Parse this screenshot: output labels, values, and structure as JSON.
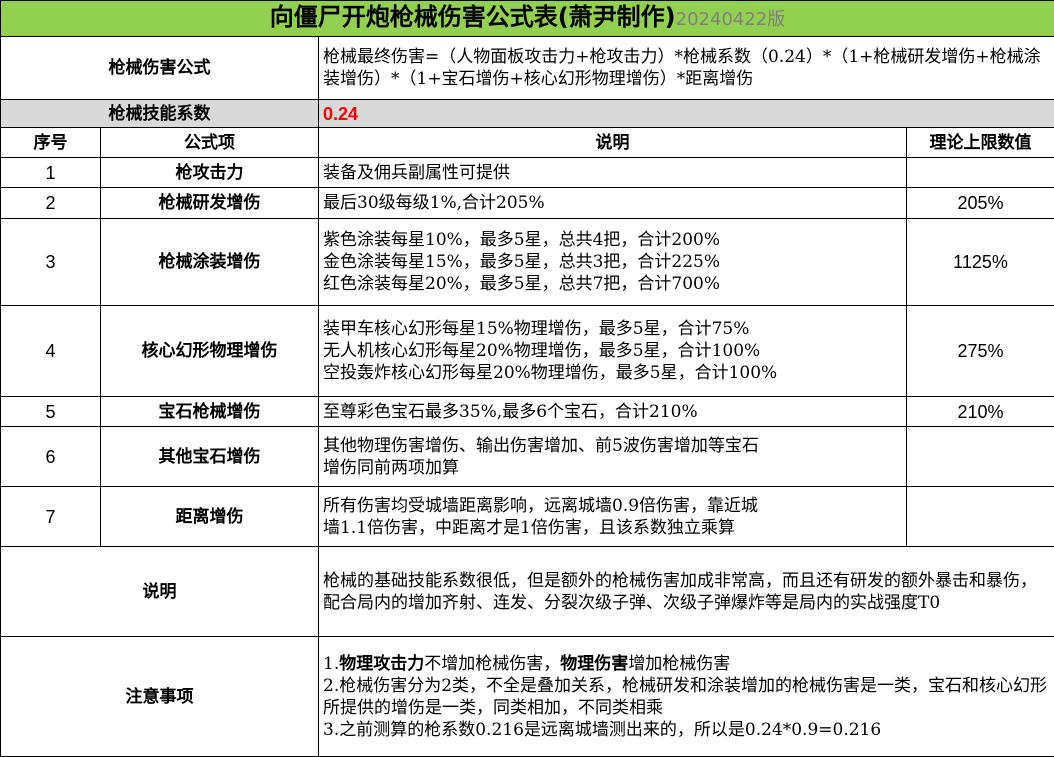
{
  "title": {
    "main": "向僵尸开炮枪械伤害公式表(萧尹制作)",
    "version": "20240422版"
  },
  "formula": {
    "label": "枪械伤害公式",
    "text": "枪械最终伤害=（人物面板攻击力+枪攻击力）*枪械系数（0.24）*（1+枪械研发增伤+枪械涂装增伤）*（1+宝石增伤+核心幻形物理增伤）*距离增伤"
  },
  "coefficient": {
    "label": "枪械技能系数",
    "value": "0.24",
    "color": "#ff0000"
  },
  "headers": [
    "序号",
    "公式项",
    "说明",
    "理论上限数值"
  ],
  "rows": [
    {
      "no": "1",
      "item": "枪攻击力",
      "desc": [
        "装备及佣兵副属性可提供"
      ],
      "max": ""
    },
    {
      "no": "2",
      "item": "枪械研发增伤",
      "desc": [
        "最后30级每级1%,合计205%"
      ],
      "max": "205%"
    },
    {
      "no": "3",
      "item": "枪械涂装增伤",
      "desc": [
        "紫色涂装每星10%，最多5星，总共4把，合计200%",
        "金色涂装每星15%，最多5星，总共3把，合计225%",
        "红色涂装每星20%，最多5星，总共7把，合计700%"
      ],
      "max": "1125%"
    },
    {
      "no": "4",
      "item": "核心幻形物理增伤",
      "desc": [
        "装甲车核心幻形每星15%物理增伤，最多5星，合计75%",
        "无人机核心幻形每星20%物理增伤，最多5星，合计100%",
        "空投轰炸核心幻形每星20%物理增伤，最多5星，合计100%"
      ],
      "max": "275%"
    },
    {
      "no": "5",
      "item": "宝石枪械增伤",
      "desc": [
        "至尊彩色宝石最多35%,最多6个宝石，合计210%"
      ],
      "max": "210%"
    },
    {
      "no": "6",
      "item": "其他宝石增伤",
      "desc": [
        "其他物理伤害增伤、输出伤害增加、前5波伤害增加等宝石",
        "增伤同前两项加算"
      ],
      "max": ""
    },
    {
      "no": "7",
      "item": "距离增伤",
      "desc": [
        "所有伤害均受城墙距离影响，远离城墙0.9倍伤害，靠近城",
        "墙1.1倍伤害，中距离才是1倍伤害，且该系数独立乘算"
      ],
      "max": ""
    }
  ],
  "explain": {
    "label": "说明",
    "text": "枪械的基础技能系数很低，但是额外的枪械伤害加成非常高，而且还有研发的额外暴击和暴伤，配合局内的增加齐射、连发、分裂次级子弹、次级子弹爆炸等是局内的实战强度T0"
  },
  "notes": {
    "label": "注意事项",
    "n1_pre": "1.",
    "n1_b1": "物理攻击力",
    "n1_m": "不增加枪械伤害，",
    "n1_b2": "物理伤害",
    "n1_post": "增加枪械伤害",
    "n2": "2.枪械伤害分为2类，不全是叠加关系，枪械研发和涂装增加的枪械伤害是一类，宝石和核心幻形所提供的增伤是一类，同类相加，不同类相乘",
    "n3": "3.之前测算的枪系数0.216是远离城墙测出来的，所以是0.24*0.9=0.216"
  }
}
